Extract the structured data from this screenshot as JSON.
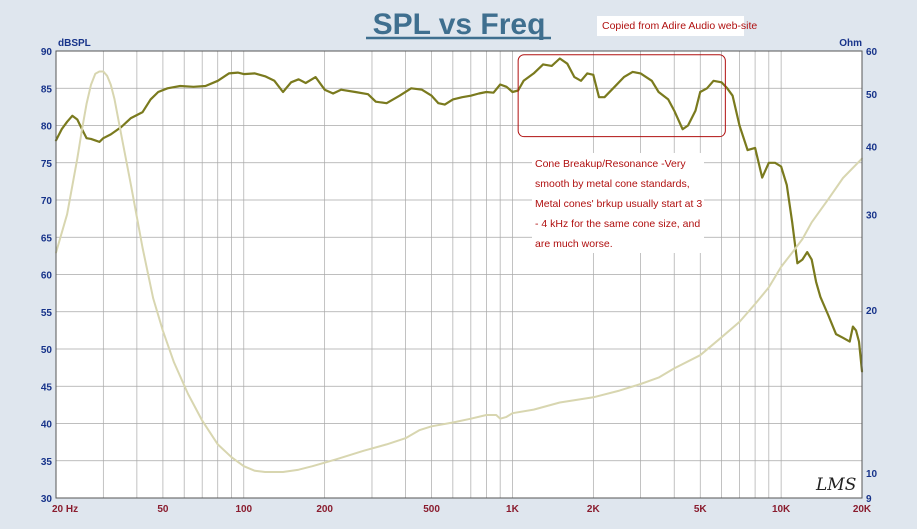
{
  "colors": {
    "background": "#dfe6ee",
    "plot_background": "#ffffff",
    "grid": "#a8a8a8",
    "title": "#3f6f8f",
    "left_axis_text": "#17338a",
    "right_axis_text": "#17338a",
    "x_axis_text": "#8a1c2e",
    "spl_line": "#7a7a1e",
    "impedance_line": "#d8d6b0",
    "annotation_text": "#b01010",
    "highlight_box": "#b01010",
    "source_note_text": "#b01010"
  },
  "source_note": "Copied from Adire Audio web-site",
  "signature": "LMS",
  "annotation": {
    "lines": [
      "Cone Breakup/Resonance -Very",
      "smooth by metal cone standards,",
      "Metal cones' brkup usually start at 3",
      " - 4 kHz for the same cone size, and",
      "are much worse."
    ]
  },
  "chart_data": {
    "type": "line",
    "title": "SPL vs Freq",
    "x_scale": "log",
    "xlim": [
      20,
      20000
    ],
    "x_tick_labels": [
      {
        "value": 20,
        "label": "20  Hz"
      },
      {
        "value": 50,
        "label": "50"
      },
      {
        "value": 100,
        "label": "100"
      },
      {
        "value": 200,
        "label": "200"
      },
      {
        "value": 500,
        "label": "500"
      },
      {
        "value": 1000,
        "label": "1K"
      },
      {
        "value": 2000,
        "label": "2K"
      },
      {
        "value": 5000,
        "label": "5K"
      },
      {
        "value": 10000,
        "label": "10K"
      },
      {
        "value": 20000,
        "label": "20K"
      }
    ],
    "y_left": {
      "label": "dBSPL",
      "ylim": [
        30,
        90
      ],
      "ticks": [
        30,
        35,
        40,
        45,
        50,
        55,
        60,
        65,
        70,
        75,
        80,
        85,
        90
      ]
    },
    "y_right": {
      "label": "Ohm",
      "scale": "log",
      "ylim": [
        9,
        60
      ],
      "ticks": [
        9,
        10,
        20,
        30,
        40,
        50,
        60
      ]
    },
    "grid": true,
    "highlight_region": {
      "x": [
        1050,
        6200
      ],
      "y": [
        78.5,
        89.5
      ]
    },
    "series": [
      {
        "axis": "left",
        "points": [
          [
            20,
            78
          ],
          [
            21,
            79.5
          ],
          [
            22,
            80.5
          ],
          [
            23,
            81.3
          ],
          [
            24,
            80.8
          ],
          [
            25,
            79.5
          ],
          [
            26,
            78.3
          ],
          [
            27,
            78.2
          ],
          [
            28,
            78
          ],
          [
            29,
            77.8
          ],
          [
            30,
            78.3
          ],
          [
            32,
            78.8
          ],
          [
            35,
            79.8
          ],
          [
            38,
            81
          ],
          [
            42,
            81.8
          ],
          [
            45,
            83.5
          ],
          [
            48,
            84.5
          ],
          [
            52,
            85
          ],
          [
            58,
            85.3
          ],
          [
            65,
            85.2
          ],
          [
            72,
            85.3
          ],
          [
            80,
            86
          ],
          [
            88,
            87
          ],
          [
            95,
            87.1
          ],
          [
            100,
            86.9
          ],
          [
            110,
            87
          ],
          [
            120,
            86.6
          ],
          [
            130,
            86
          ],
          [
            140,
            84.5
          ],
          [
            150,
            85.8
          ],
          [
            160,
            86.2
          ],
          [
            170,
            85.7
          ],
          [
            185,
            86.5
          ],
          [
            200,
            84.8
          ],
          [
            215,
            84.3
          ],
          [
            230,
            84.8
          ],
          [
            260,
            84.5
          ],
          [
            290,
            84.2
          ],
          [
            310,
            83.2
          ],
          [
            340,
            83
          ],
          [
            380,
            84
          ],
          [
            420,
            85
          ],
          [
            460,
            84.8
          ],
          [
            500,
            84
          ],
          [
            530,
            83
          ],
          [
            560,
            82.8
          ],
          [
            600,
            83.5
          ],
          [
            650,
            83.8
          ],
          [
            700,
            84
          ],
          [
            750,
            84.3
          ],
          [
            800,
            84.5
          ],
          [
            850,
            84.4
          ],
          [
            900,
            85.5
          ],
          [
            950,
            85.2
          ],
          [
            1000,
            84.5
          ],
          [
            1050,
            84.7
          ],
          [
            1100,
            86
          ],
          [
            1200,
            87
          ],
          [
            1300,
            88.2
          ],
          [
            1400,
            88
          ],
          [
            1500,
            89
          ],
          [
            1600,
            88.3
          ],
          [
            1700,
            86.5
          ],
          [
            1800,
            86
          ],
          [
            1900,
            87
          ],
          [
            2000,
            86.8
          ],
          [
            2100,
            83.8
          ],
          [
            2200,
            83.8
          ],
          [
            2400,
            85.2
          ],
          [
            2600,
            86.5
          ],
          [
            2800,
            87.2
          ],
          [
            3000,
            87
          ],
          [
            3300,
            86
          ],
          [
            3500,
            84.5
          ],
          [
            3800,
            83.5
          ],
          [
            4000,
            82
          ],
          [
            4300,
            79.5
          ],
          [
            4500,
            80
          ],
          [
            4800,
            82
          ],
          [
            5000,
            84.5
          ],
          [
            5300,
            85
          ],
          [
            5600,
            86
          ],
          [
            6000,
            85.8
          ],
          [
            6300,
            85
          ],
          [
            6600,
            84
          ],
          [
            7000,
            80
          ],
          [
            7500,
            76.7
          ],
          [
            8000,
            77
          ],
          [
            8500,
            73
          ],
          [
            9000,
            75
          ],
          [
            9500,
            75
          ],
          [
            10000,
            74.5
          ],
          [
            10500,
            72
          ],
          [
            11000,
            67
          ],
          [
            11500,
            61.5
          ],
          [
            12000,
            62
          ],
          [
            12500,
            63
          ],
          [
            13000,
            62
          ],
          [
            13500,
            59
          ],
          [
            14000,
            57
          ],
          [
            15000,
            54.5
          ],
          [
            16000,
            52
          ],
          [
            17000,
            51.5
          ],
          [
            18000,
            51
          ],
          [
            18500,
            53
          ],
          [
            19000,
            52.5
          ],
          [
            19500,
            51
          ],
          [
            20000,
            47
          ]
        ]
      },
      {
        "axis": "right",
        "points": [
          [
            20,
            25.5
          ],
          [
            22,
            30
          ],
          [
            24,
            38
          ],
          [
            25,
            43
          ],
          [
            26,
            48
          ],
          [
            27,
            52
          ],
          [
            28,
            54.5
          ],
          [
            29,
            55
          ],
          [
            30,
            55
          ],
          [
            31,
            54
          ],
          [
            32,
            52
          ],
          [
            33,
            49
          ],
          [
            35,
            42
          ],
          [
            38,
            34
          ],
          [
            42,
            26
          ],
          [
            46,
            21
          ],
          [
            50,
            18.3
          ],
          [
            55,
            16
          ],
          [
            62,
            14
          ],
          [
            70,
            12.5
          ],
          [
            80,
            11.3
          ],
          [
            90,
            10.7
          ],
          [
            100,
            10.3
          ],
          [
            110,
            10.1
          ],
          [
            120,
            10.05
          ],
          [
            140,
            10.05
          ],
          [
            160,
            10.15
          ],
          [
            180,
            10.3
          ],
          [
            220,
            10.6
          ],
          [
            280,
            11
          ],
          [
            340,
            11.3
          ],
          [
            400,
            11.6
          ],
          [
            450,
            12
          ],
          [
            500,
            12.2
          ],
          [
            600,
            12.4
          ],
          [
            700,
            12.6
          ],
          [
            800,
            12.8
          ],
          [
            870,
            12.8
          ],
          [
            900,
            12.6
          ],
          [
            950,
            12.7
          ],
          [
            1000,
            12.9
          ],
          [
            1200,
            13.1
          ],
          [
            1500,
            13.5
          ],
          [
            2000,
            13.8
          ],
          [
            2500,
            14.2
          ],
          [
            3000,
            14.6
          ],
          [
            3500,
            15
          ],
          [
            4000,
            15.6
          ],
          [
            5000,
            16.5
          ],
          [
            6000,
            17.8
          ],
          [
            7000,
            19
          ],
          [
            8000,
            20.5
          ],
          [
            9000,
            22
          ],
          [
            10000,
            24
          ],
          [
            11000,
            25.5
          ],
          [
            12000,
            27
          ],
          [
            13000,
            29
          ],
          [
            15000,
            32
          ],
          [
            17000,
            35
          ],
          [
            20000,
            38
          ]
        ]
      }
    ]
  }
}
